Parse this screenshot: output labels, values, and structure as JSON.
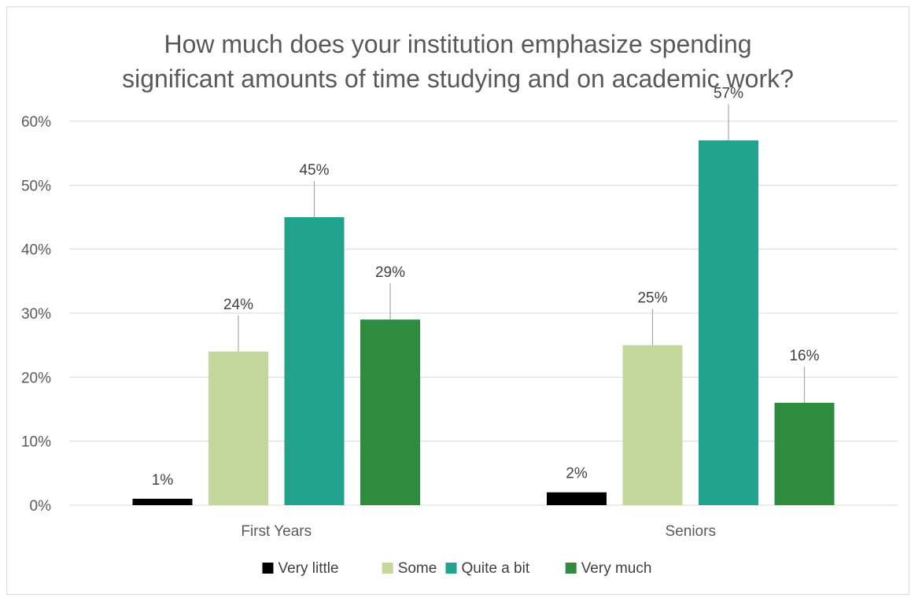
{
  "chart_data": {
    "type": "bar",
    "title_lines": [
      "How much does your institution emphasize spending",
      "significant amounts of time studying and on academic work?"
    ],
    "categories": [
      "First Years",
      "Seniors"
    ],
    "series": [
      {
        "name": "Very little",
        "color": "#000000",
        "values": [
          1,
          2
        ],
        "labels": [
          "1%",
          "2%"
        ]
      },
      {
        "name": "Some",
        "color": "#c4d79b",
        "values": [
          24,
          25
        ],
        "labels": [
          "24%",
          "25%"
        ]
      },
      {
        "name": "Quite a bit",
        "color": "#21a38e",
        "values": [
          45,
          57
        ],
        "labels": [
          "45%",
          "57%"
        ]
      },
      {
        "name": "Very much",
        "color": "#2e8b3f",
        "values": [
          29,
          16
        ],
        "labels": [
          "29%",
          "16%"
        ]
      }
    ],
    "y_ticks": [
      "0%",
      "10%",
      "20%",
      "30%",
      "40%",
      "50%",
      "60%"
    ],
    "ylim": [
      0,
      60
    ],
    "grid": true,
    "legend_position": "bottom"
  }
}
